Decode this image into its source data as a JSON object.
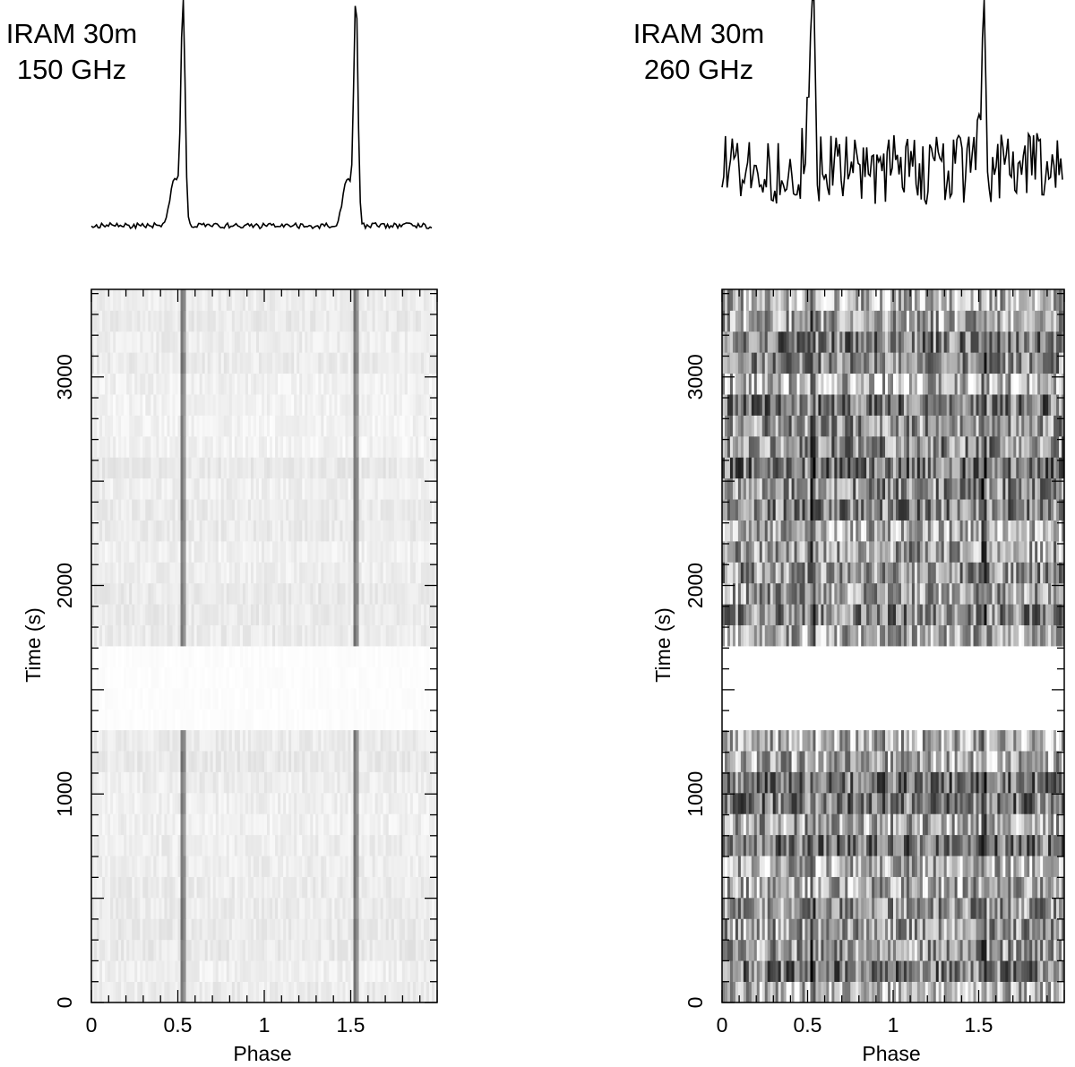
{
  "chart_data": [
    {
      "type": "heatmap",
      "title": [
        "IRAM 30m",
        "150 GHz"
      ],
      "xlabel": "Phase",
      "ylabel": "Time  (s)",
      "xlim": [
        0,
        2
      ],
      "ylim": [
        0,
        3420
      ],
      "x_ticks": [
        0,
        0.5,
        1,
        1.5
      ],
      "x_tick_labels": [
        "0",
        "0.5",
        "1",
        "1.5"
      ],
      "y_ticks": [
        0,
        1000,
        2000,
        3000
      ],
      "y_tick_labels": [
        "0",
        "1000",
        "2000",
        "3000"
      ],
      "colormap": "white-to-black",
      "gap_s": [
        1300,
        1700
      ],
      "pulse_phases": [
        0.53,
        1.53
      ],
      "profile": {
        "type": "line",
        "baseline": 0.06,
        "main_peak": {
          "phase": 0.53,
          "height": 1.0,
          "width": 0.012
        },
        "shoulder": {
          "phase": 0.48,
          "height": 0.2,
          "width": 0.025
        },
        "noise": 0.012
      },
      "background_level": 0.05,
      "pulse_level": 0.75
    },
    {
      "type": "heatmap",
      "title": [
        "IRAM 30m",
        "260 GHz"
      ],
      "xlabel": "Phase",
      "ylabel": "Time  (s)",
      "xlim": [
        0,
        2
      ],
      "ylim": [
        0,
        3420
      ],
      "x_ticks": [
        0,
        0.5,
        1,
        1.5
      ],
      "x_tick_labels": [
        "0",
        "0.5",
        "1",
        "1.5"
      ],
      "y_ticks": [
        0,
        1000,
        2000,
        3000
      ],
      "y_tick_labels": [
        "0",
        "1000",
        "2000",
        "3000"
      ],
      "colormap": "white-to-black",
      "gap_s": [
        1300,
        1700
      ],
      "pulse_phases": [
        0.53,
        1.53
      ],
      "profile": {
        "type": "line",
        "baseline": 0.3,
        "main_peak": {
          "phase": 0.53,
          "height": 1.0,
          "width": 0.012
        },
        "shoulder": {
          "phase": 0.5,
          "height": 0.15,
          "width": 0.02
        },
        "noise": 0.15
      },
      "background_level": 0.4,
      "pulse_level": 0.75
    }
  ]
}
